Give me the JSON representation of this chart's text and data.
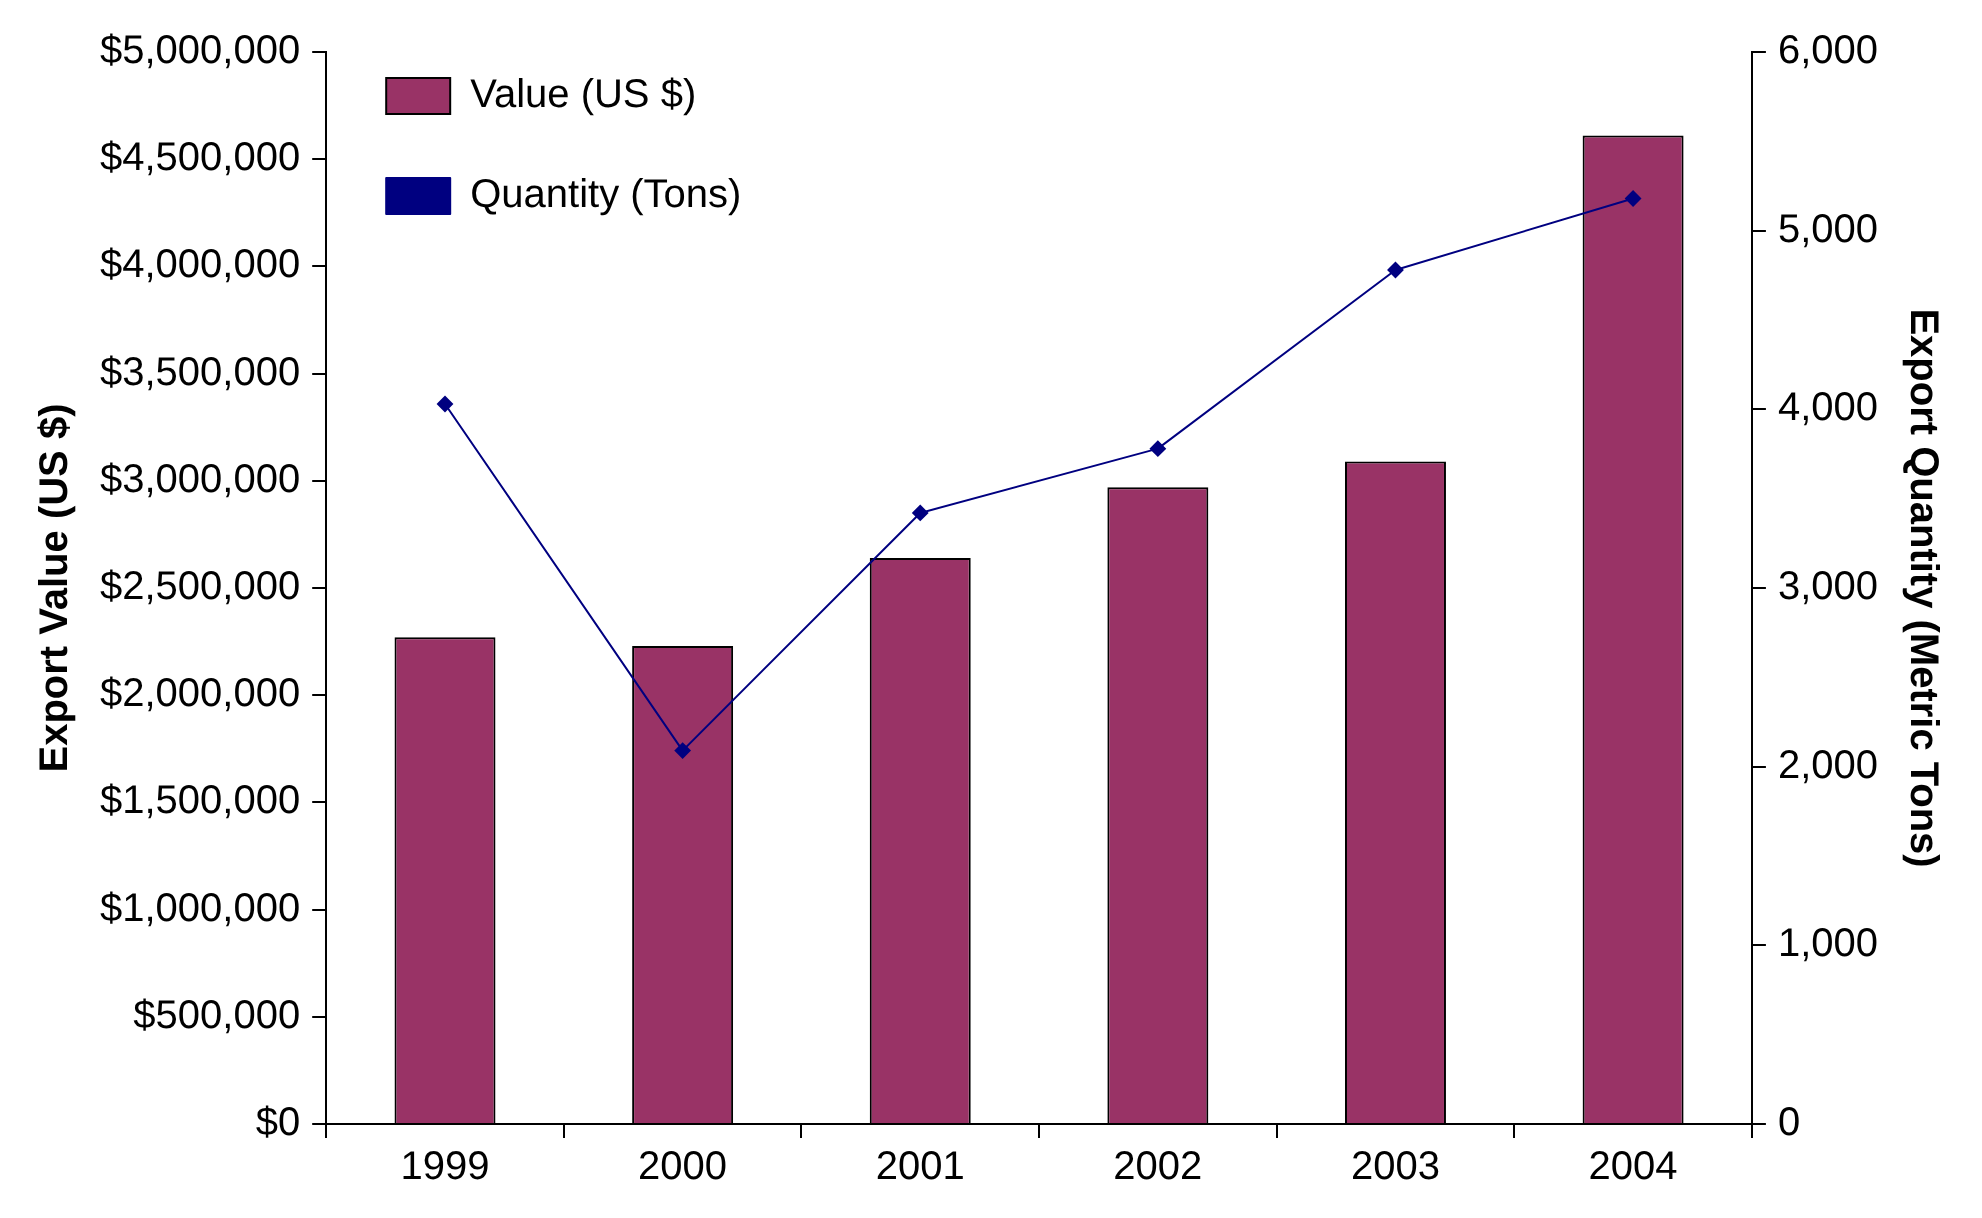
{
  "chart_data": {
    "type": "bar",
    "categories": [
      "1999",
      "2000",
      "2001",
      "2002",
      "2003",
      "2004"
    ],
    "ylabel": "Export Value (US $)",
    "y2label": "Export Quantity (Metric Tons)",
    "series": [
      {
        "name": "Value (US $)",
        "color": "#993366",
        "values": [
          2270000,
          2230000,
          2640000,
          2970000,
          3090000,
          4610000
        ]
      },
      {
        "name": "Quantity (Tons)",
        "type": "line",
        "axis": "y2",
        "color": "#000080",
        "marker": "diamond",
        "values": [
          4030,
          2090,
          3420,
          3780,
          4780,
          5180
        ]
      }
    ],
    "ylim": [
      0,
      5000000
    ],
    "yticks": [
      {
        "value": 0,
        "label": "$0"
      },
      {
        "value": 500000,
        "label": "$500,000"
      },
      {
        "value": 1000000,
        "label": "$1,000,000"
      },
      {
        "value": 1500000,
        "label": "$1,500,000"
      },
      {
        "value": 2000000,
        "label": "$2,000,000"
      },
      {
        "value": 2500000,
        "label": "$2,500,000"
      },
      {
        "value": 3000000,
        "label": "$3,000,000"
      },
      {
        "value": 3500000,
        "label": "$3,500,000"
      },
      {
        "value": 4000000,
        "label": "$4,000,000"
      },
      {
        "value": 4500000,
        "label": "$4,500,000"
      },
      {
        "value": 5000000,
        "label": "$5,000,000"
      }
    ],
    "y2lim": [
      0,
      6000
    ],
    "y2ticks": [
      0,
      {
        "value": 1000,
        "label": "1,000"
      },
      {
        "value": 2000,
        "label": "2,000"
      },
      {
        "value": 3000,
        "label": "3,000"
      },
      {
        "value": 4000,
        "label": "4,000"
      },
      {
        "value": 5000,
        "label": "5,000"
      },
      {
        "value": 6000,
        "label": "6,000"
      }
    ],
    "grid": false,
    "legend": "top left"
  }
}
